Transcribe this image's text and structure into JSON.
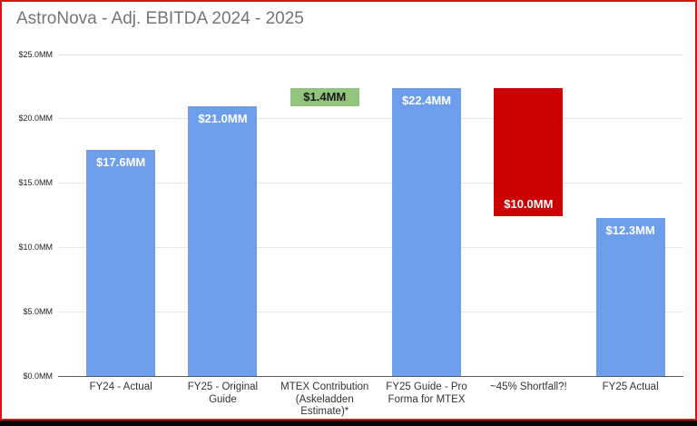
{
  "window": {
    "border_color": "#d01616",
    "bottom_strip_color": "#050505",
    "background_color": "#ffffff"
  },
  "chart_data": {
    "type": "bar",
    "title": "AstroNova - Adj. EBITDA 2024 - 2025",
    "title_color": "#757575",
    "xlabel": "",
    "ylabel": "",
    "ylim": [
      0,
      25
    ],
    "grid": true,
    "legend_position": "none",
    "yticks": [
      {
        "value": 0,
        "label": "$0.0MM"
      },
      {
        "value": 5,
        "label": "$5.0MM"
      },
      {
        "value": 10,
        "label": "$10.0MM"
      },
      {
        "value": 15,
        "label": "$15.0MM"
      },
      {
        "value": 20,
        "label": "$20.0MM"
      },
      {
        "value": 25,
        "label": "$25.0MM"
      }
    ],
    "categories": [
      "FY24 - Actual",
      "FY25 - Original Guide",
      "MTEX Contribution (Askeladden Estimate)*",
      "FY25 Guide - Pro Forma for MTEX",
      "~45% Shortfall?!",
      "FY25 Actual"
    ],
    "bars": [
      {
        "category": "FY24 - Actual",
        "base": 0,
        "top": 17.6,
        "label": "$17.6MM",
        "color": "#6d9eeb",
        "label_color": "#ffffff",
        "label_pos": "inside-top"
      },
      {
        "category": "FY25 - Original Guide",
        "base": 0,
        "top": 21.0,
        "label": "$21.0MM",
        "color": "#6d9eeb",
        "label_color": "#ffffff",
        "label_pos": "inside-top"
      },
      {
        "category": "MTEX Contribution (Askeladden Estimate)*",
        "base": 21.0,
        "top": 22.4,
        "label": "$1.4MM",
        "color": "#93c47d",
        "label_color": "#1b1b1b",
        "label_pos": "center"
      },
      {
        "category": "FY25 Guide - Pro Forma for MTEX",
        "base": 0,
        "top": 22.4,
        "label": "$22.4MM",
        "color": "#6d9eeb",
        "label_color": "#ffffff",
        "label_pos": "inside-top"
      },
      {
        "category": "~45% Shortfall?!",
        "base": 12.4,
        "top": 22.4,
        "label": "$10.0MM",
        "color": "#cc0000",
        "label_color": "#ffffff",
        "label_pos": "inside-bottom"
      },
      {
        "category": "FY25 Actual",
        "base": 0,
        "top": 12.3,
        "label": "$12.3MM",
        "color": "#6d9eeb",
        "label_color": "#ffffff",
        "label_pos": "inside-top"
      }
    ]
  }
}
